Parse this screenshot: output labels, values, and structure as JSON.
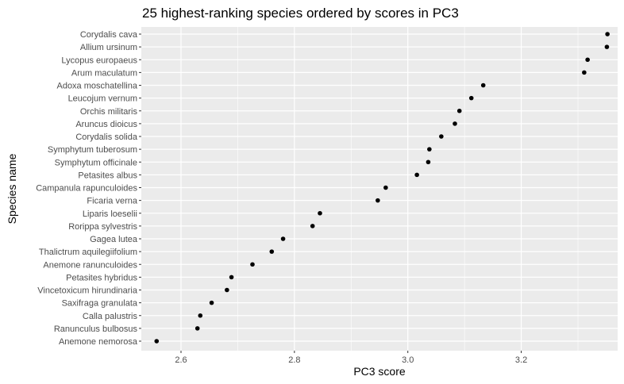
{
  "chart_data": {
    "type": "scatter",
    "title": "25 highest-ranking species ordered by scores in PC3",
    "xlabel": "PC3 score",
    "ylabel": "Species name",
    "xlim": [
      2.53,
      3.37
    ],
    "x_ticks": [
      2.6,
      2.8,
      3.0,
      3.2
    ],
    "x_tick_labels": [
      "2.6",
      "2.8",
      "3.0",
      "3.2"
    ],
    "grid": true,
    "panel_background": "#ebebeb",
    "grid_color": "#ffffff",
    "point_color": "#000000",
    "points": [
      {
        "species": "Corydalis cava",
        "x": 3.352
      },
      {
        "species": "Allium ursinum",
        "x": 3.351
      },
      {
        "species": "Lycopus europaeus",
        "x": 3.317
      },
      {
        "species": "Arum maculatum",
        "x": 3.311
      },
      {
        "species": "Adoxa moschatellina",
        "x": 3.133
      },
      {
        "species": "Leucojum vernum",
        "x": 3.112
      },
      {
        "species": "Orchis militaris",
        "x": 3.091
      },
      {
        "species": "Aruncus dioicus",
        "x": 3.083
      },
      {
        "species": "Corydalis solida",
        "x": 3.059
      },
      {
        "species": "Symphytum tuberosum",
        "x": 3.038
      },
      {
        "species": "Symphytum officinale",
        "x": 3.036
      },
      {
        "species": "Petasites albus",
        "x": 3.016
      },
      {
        "species": "Campanula rapunculoides",
        "x": 2.961
      },
      {
        "species": "Ficaria verna",
        "x": 2.947
      },
      {
        "species": "Liparis loeselii",
        "x": 2.845
      },
      {
        "species": "Rorippa sylvestris",
        "x": 2.832
      },
      {
        "species": "Gagea lutea",
        "x": 2.78
      },
      {
        "species": "Thalictrum aquilegiifolium",
        "x": 2.76
      },
      {
        "species": "Anemone ranunculoides",
        "x": 2.726
      },
      {
        "species": "Petasites hybridus",
        "x": 2.689
      },
      {
        "species": "Vincetoxicum hirundinaria",
        "x": 2.681
      },
      {
        "species": "Saxifraga granulata",
        "x": 2.654
      },
      {
        "species": "Calla palustris",
        "x": 2.634
      },
      {
        "species": "Ranunculus bulbosus",
        "x": 2.629
      },
      {
        "species": "Anemone nemorosa",
        "x": 2.557
      }
    ]
  }
}
